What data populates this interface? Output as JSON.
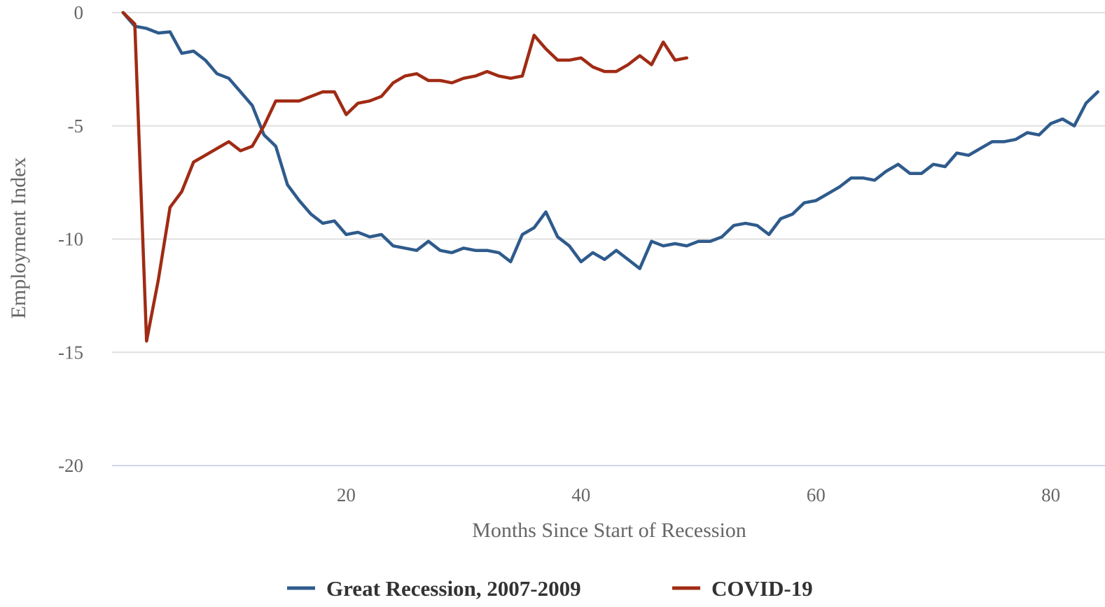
{
  "chart_data": {
    "type": "line",
    "title": "",
    "xlabel": "Months Since Start of Recession",
    "ylabel": "Employment Index",
    "xlim": [
      0,
      84
    ],
    "ylim": [
      -20,
      0
    ],
    "x_ticks": [
      20,
      40,
      60,
      80
    ],
    "y_ticks": [
      0,
      -5,
      -10,
      -15,
      -20
    ],
    "grid": true,
    "legend_position": "bottom-center",
    "series": [
      {
        "name": "Great Recession, 2007-2009",
        "color": "#2f5b8c",
        "x": [
          1,
          2,
          3,
          4,
          5,
          6,
          7,
          8,
          9,
          10,
          11,
          12,
          13,
          14,
          15,
          16,
          17,
          18,
          19,
          20,
          21,
          22,
          23,
          24,
          25,
          26,
          27,
          28,
          29,
          30,
          31,
          32,
          33,
          34,
          35,
          36,
          37,
          38,
          39,
          40,
          41,
          42,
          43,
          44,
          45,
          46,
          47,
          48,
          49,
          50,
          51,
          52,
          53,
          54,
          55,
          56,
          57,
          58,
          59,
          60,
          61,
          62,
          63,
          64,
          65,
          66,
          67,
          68,
          69,
          70,
          71,
          72,
          73,
          74,
          75,
          76,
          77,
          78,
          79,
          80,
          81,
          82,
          83,
          84
        ],
        "y": [
          0,
          -0.6,
          -0.7,
          -0.9,
          -0.85,
          -1.8,
          -1.7,
          -2.1,
          -2.7,
          -2.9,
          -3.5,
          -4.1,
          -5.4,
          -5.9,
          -7.6,
          -8.3,
          -8.9,
          -9.3,
          -9.2,
          -9.8,
          -9.7,
          -9.9,
          -9.8,
          -10.3,
          -10.4,
          -10.5,
          -10.1,
          -10.5,
          -10.6,
          -10.4,
          -10.5,
          -10.5,
          -10.6,
          -11.0,
          -9.8,
          -9.5,
          -8.8,
          -9.9,
          -10.3,
          -11.0,
          -10.6,
          -10.9,
          -10.5,
          -10.9,
          -11.3,
          -10.1,
          -10.3,
          -10.2,
          -10.3,
          -10.1,
          -10.1,
          -9.9,
          -9.4,
          -9.3,
          -9.4,
          -9.8,
          -9.1,
          -8.9,
          -8.4,
          -8.3,
          -8.0,
          -7.7,
          -7.3,
          -7.3,
          -7.4,
          -7.0,
          -6.7,
          -7.1,
          -7.1,
          -6.7,
          -6.8,
          -6.2,
          -6.3,
          -6.0,
          -5.7,
          -5.7,
          -5.6,
          -5.3,
          -5.4,
          -4.9,
          -4.7,
          -5.0,
          -4.0,
          -3.5
        ]
      },
      {
        "name": "COVID-19",
        "color": "#a02b14",
        "x": [
          1,
          2,
          3,
          4,
          5,
          6,
          7,
          8,
          9,
          10,
          11,
          12,
          13,
          14,
          15,
          16,
          17,
          18,
          19,
          20,
          21,
          22,
          23,
          24,
          25,
          26,
          27,
          28,
          29,
          30,
          31,
          32,
          33,
          34,
          35,
          36,
          37,
          38,
          39,
          40,
          41,
          42,
          43,
          44,
          45,
          46,
          47,
          48,
          49
        ],
        "y": [
          0,
          -0.5,
          -14.5,
          -11.8,
          -8.6,
          -7.9,
          -6.6,
          -6.3,
          -6.0,
          -5.7,
          -6.1,
          -5.9,
          -5.0,
          -3.9,
          -3.9,
          -3.9,
          -3.7,
          -3.5,
          -3.5,
          -4.5,
          -4.0,
          -3.9,
          -3.7,
          -3.1,
          -2.8,
          -2.7,
          -3.0,
          -3.0,
          -3.1,
          -2.9,
          -2.8,
          -2.6,
          -2.8,
          -2.9,
          -2.8,
          -1.0,
          -1.6,
          -2.1,
          -2.1,
          -2.0,
          -2.4,
          -2.6,
          -2.6,
          -2.3,
          -1.9,
          -2.3,
          -1.3,
          -2.1,
          -2.0
        ]
      }
    ]
  }
}
